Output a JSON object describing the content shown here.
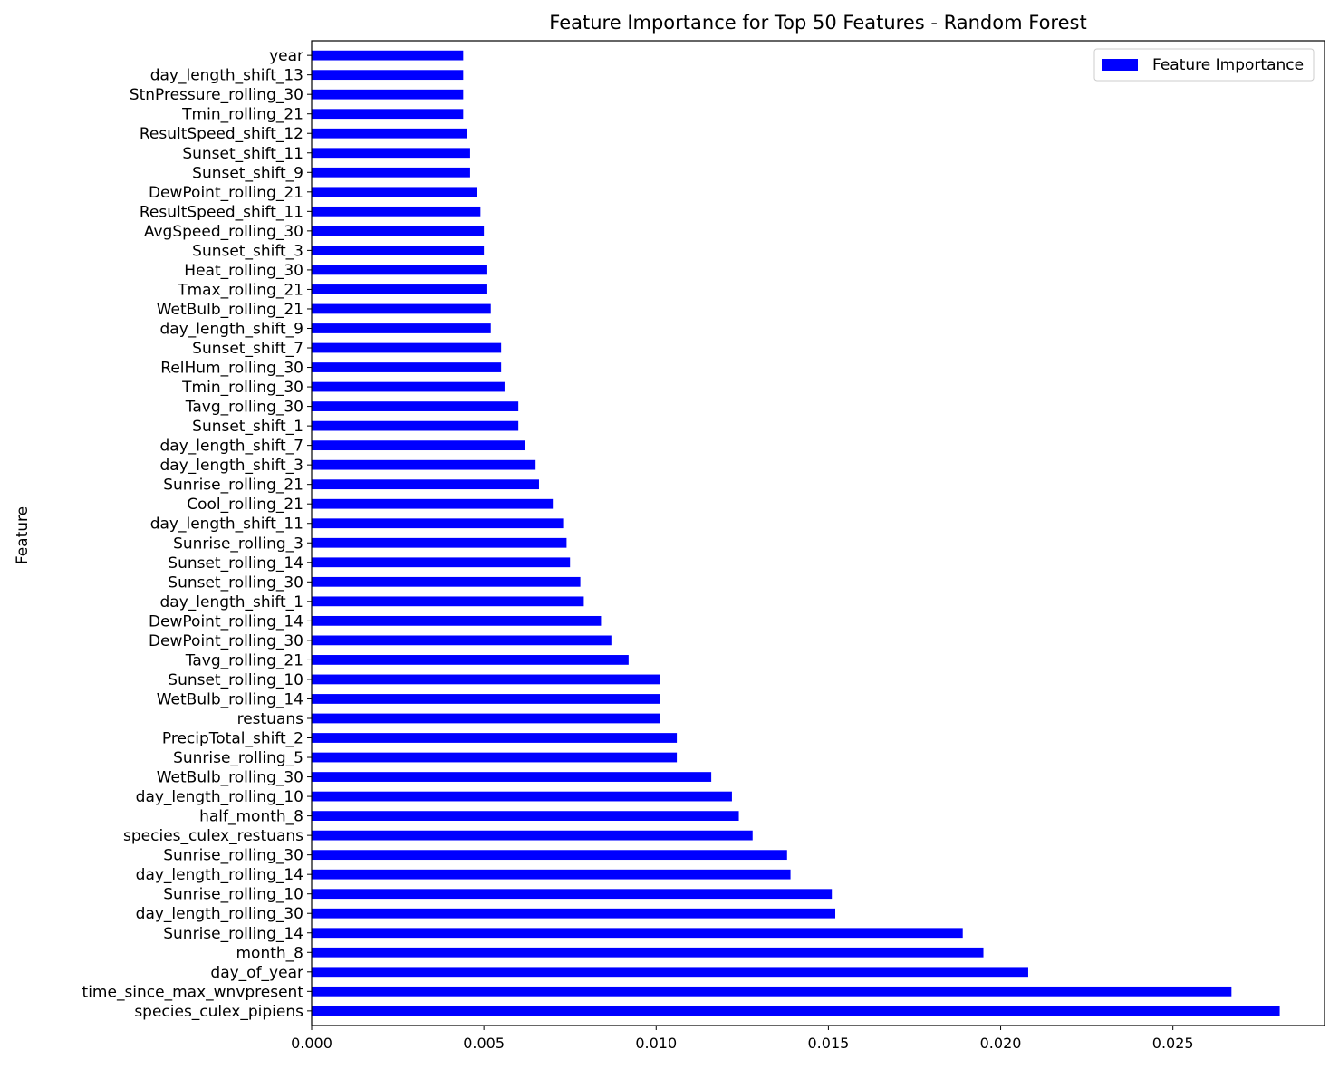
{
  "chart_data": {
    "type": "bar",
    "orientation": "horizontal",
    "title": "Feature Importance for Top 50 Features - Random Forest",
    "xlabel": "",
    "ylabel": "Feature",
    "xlim": [
      0,
      0.0294
    ],
    "xticks": [
      0.0,
      0.005,
      0.01,
      0.015,
      0.02,
      0.025
    ],
    "xtick_labels": [
      "0.000",
      "0.005",
      "0.010",
      "0.015",
      "0.020",
      "0.025"
    ],
    "grid": false,
    "legend": {
      "position": "top-right",
      "entries": [
        "Feature Importance"
      ]
    },
    "bar_color": "#0000ff",
    "series": [
      {
        "name": "Feature Importance",
        "categories": [
          "species_culex_pipiens",
          "time_since_max_wnvpresent",
          "day_of_year",
          "month_8",
          "Sunrise_rolling_14",
          "day_length_rolling_30",
          "Sunrise_rolling_10",
          "day_length_rolling_14",
          "Sunrise_rolling_30",
          "species_culex_restuans",
          "half_month_8",
          "day_length_rolling_10",
          "WetBulb_rolling_30",
          "Sunrise_rolling_5",
          "PrecipTotal_shift_2",
          "restuans",
          "WetBulb_rolling_14",
          "Sunset_rolling_10",
          "Tavg_rolling_21",
          "DewPoint_rolling_30",
          "DewPoint_rolling_14",
          "day_length_shift_1",
          "Sunset_rolling_30",
          "Sunset_rolling_14",
          "Sunrise_rolling_3",
          "day_length_shift_11",
          "Cool_rolling_21",
          "Sunrise_rolling_21",
          "day_length_shift_3",
          "day_length_shift_7",
          "Sunset_shift_1",
          "Tavg_rolling_30",
          "Tmin_rolling_30",
          "RelHum_rolling_30",
          "Sunset_shift_7",
          "day_length_shift_9",
          "WetBulb_rolling_21",
          "Tmax_rolling_21",
          "Heat_rolling_30",
          "Sunset_shift_3",
          "AvgSpeed_rolling_30",
          "ResultSpeed_shift_11",
          "DewPoint_rolling_21",
          "Sunset_shift_9",
          "Sunset_shift_11",
          "ResultSpeed_shift_12",
          "Tmin_rolling_21",
          "StnPressure_rolling_30",
          "day_length_shift_13",
          "year"
        ],
        "values": [
          0.0281,
          0.0267,
          0.0208,
          0.0195,
          0.0189,
          0.0152,
          0.0151,
          0.0139,
          0.0138,
          0.0128,
          0.0124,
          0.0122,
          0.0116,
          0.0106,
          0.0106,
          0.0101,
          0.0101,
          0.0101,
          0.0092,
          0.0087,
          0.0084,
          0.0079,
          0.0078,
          0.0075,
          0.0074,
          0.0073,
          0.007,
          0.0066,
          0.0065,
          0.0062,
          0.006,
          0.006,
          0.0056,
          0.0055,
          0.0055,
          0.0052,
          0.0052,
          0.0051,
          0.0051,
          0.005,
          0.005,
          0.0049,
          0.0048,
          0.0046,
          0.0046,
          0.0045,
          0.0044,
          0.0044,
          0.0044,
          0.0044
        ]
      }
    ]
  }
}
